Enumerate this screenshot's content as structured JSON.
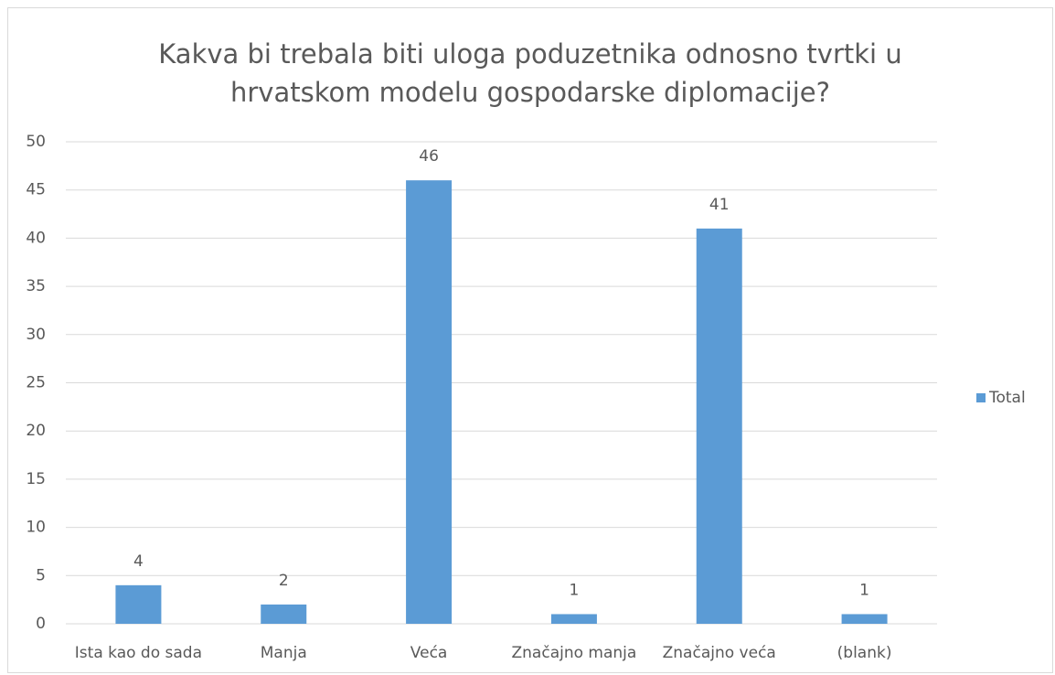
{
  "chart_data": {
    "type": "bar",
    "title": "Kakva bi trebala biti uloga poduzetnika odnosno tvrtki u hrvatskom modelu gospodarske diplomacije?",
    "categories": [
      "Ista kao do sada",
      "Manja",
      "Veća",
      "Značajno manja",
      "Značajno veća",
      "(blank)"
    ],
    "series": [
      {
        "name": "Total",
        "color": "#5b9bd5",
        "values": [
          4,
          2,
          46,
          1,
          41,
          1
        ]
      }
    ],
    "ylim": [
      0,
      50
    ],
    "yticks": [
      0,
      5,
      10,
      15,
      20,
      25,
      30,
      35,
      40,
      45,
      50
    ],
    "grid": true,
    "legend": "right"
  }
}
